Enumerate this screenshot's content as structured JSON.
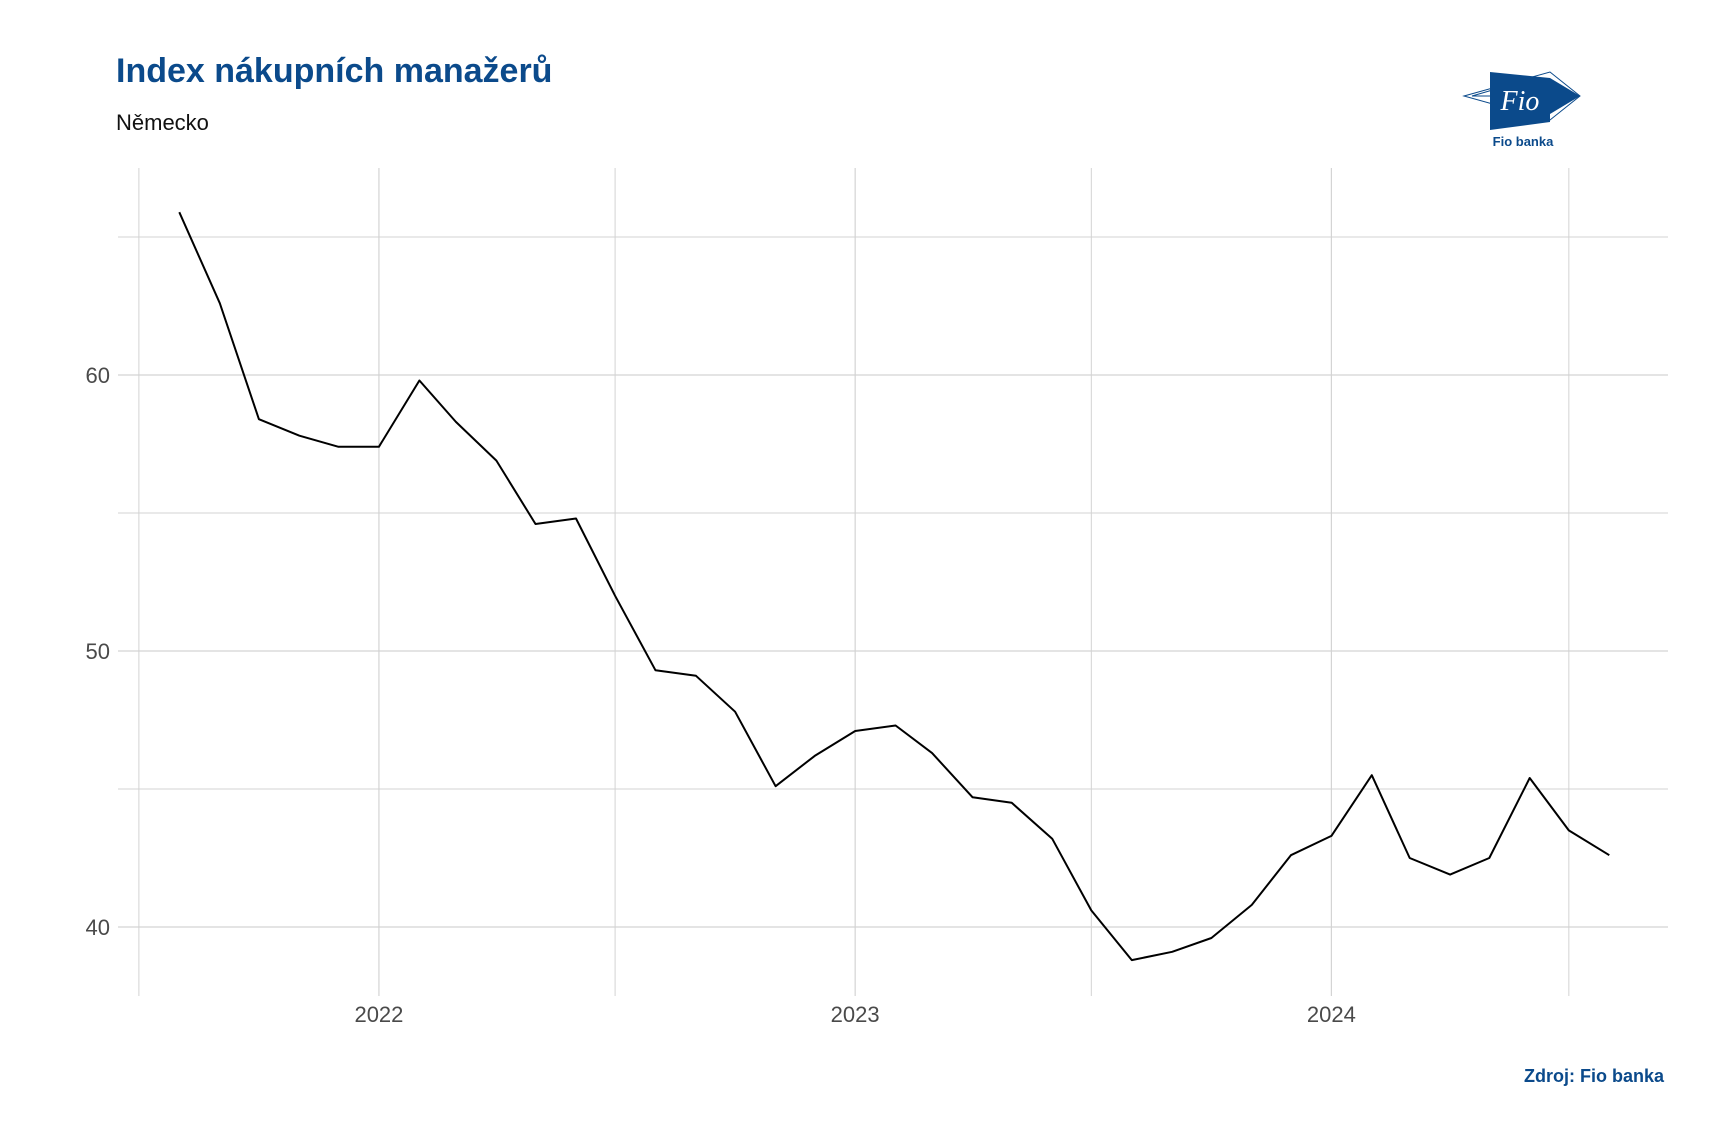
{
  "header": {
    "title": "Index nákupních manažerů",
    "subtitle": "Německo"
  },
  "logo": {
    "icon": "fio-logo-icon",
    "mark_text": "Fio",
    "caption": "Fio banka"
  },
  "footer": {
    "source": "Zdroj: Fio banka"
  },
  "colors": {
    "title": "#0b4a8b",
    "line": "#000000",
    "grid": "#d3d3d3"
  },
  "chart_data": {
    "type": "line",
    "title": "Index nákupních manažerů",
    "subtitle": "Německo",
    "xlabel": "",
    "ylabel": "",
    "x_ticks": [
      "2022",
      "2023",
      "2024"
    ],
    "y_ticks": [
      40,
      50,
      60
    ],
    "ylim": [
      37.5,
      67.5
    ],
    "xlim": [
      "2021-06-15",
      "2024-09-15"
    ],
    "grid": true,
    "legend": "none",
    "series": [
      {
        "x": [
          "2021-08-01",
          "2021-09-01",
          "2021-10-01",
          "2021-11-01",
          "2021-12-01",
          "2022-01-01",
          "2022-02-01",
          "2022-03-01",
          "2022-04-01",
          "2022-05-01",
          "2022-06-01",
          "2022-07-01",
          "2022-08-01",
          "2022-09-01",
          "2022-10-01",
          "2022-11-01",
          "2022-12-01",
          "2023-01-01",
          "2023-02-01",
          "2023-03-01",
          "2023-04-01",
          "2023-05-01",
          "2023-06-01",
          "2023-07-01",
          "2023-08-01",
          "2023-09-01",
          "2023-10-01",
          "2023-11-01",
          "2023-12-01",
          "2024-01-01",
          "2024-02-01",
          "2024-03-01",
          "2024-04-01",
          "2024-05-01",
          "2024-06-01",
          "2024-07-01",
          "2024-08-01"
        ],
        "values": [
          65.9,
          62.6,
          58.4,
          57.8,
          57.4,
          57.4,
          59.8,
          58.3,
          56.9,
          54.6,
          54.8,
          52.0,
          49.3,
          49.1,
          47.8,
          45.1,
          46.2,
          47.1,
          47.3,
          46.3,
          44.7,
          44.5,
          43.2,
          40.6,
          38.8,
          39.1,
          39.6,
          40.8,
          42.6,
          43.3,
          45.5,
          42.5,
          41.9,
          42.5,
          45.4,
          43.5,
          42.6
        ]
      }
    ]
  }
}
